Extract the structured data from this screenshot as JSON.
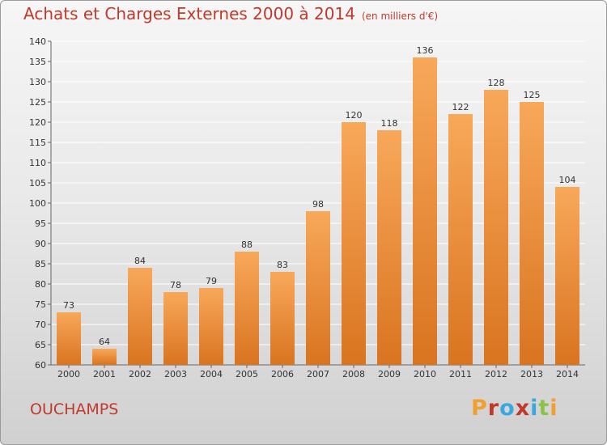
{
  "title": "Achats et Charges Externes 2000 à 2014",
  "subtitle": "(en milliers d'€)",
  "commune": "OUCHAMPS",
  "logo": {
    "text": "Proxiti",
    "colors": [
      "#f0a030",
      "#c0392b",
      "#3aa8e0",
      "#c0392b",
      "#3aa8e0",
      "#8bc34a",
      "#f0a030"
    ]
  },
  "colors": {
    "bar_top": "#f8a85a",
    "bar_bottom": "#d97420",
    "title": "#c0392b",
    "grid": "#ffffff"
  },
  "chart_data": {
    "type": "bar",
    "title": "Achats et Charges Externes 2000 à 2014",
    "xlabel": "",
    "ylabel": "",
    "ylim": [
      60,
      140
    ],
    "yticks": [
      60,
      65,
      70,
      75,
      80,
      85,
      90,
      95,
      100,
      105,
      110,
      115,
      120,
      125,
      130,
      135,
      140
    ],
    "grid": true,
    "categories": [
      "2000",
      "2001",
      "2002",
      "2003",
      "2004",
      "2005",
      "2006",
      "2007",
      "2008",
      "2009",
      "2010",
      "2011",
      "2012",
      "2013",
      "2014"
    ],
    "values": [
      73,
      64,
      84,
      78,
      79,
      88,
      83,
      98,
      120,
      118,
      136,
      122,
      128,
      125,
      104
    ]
  }
}
